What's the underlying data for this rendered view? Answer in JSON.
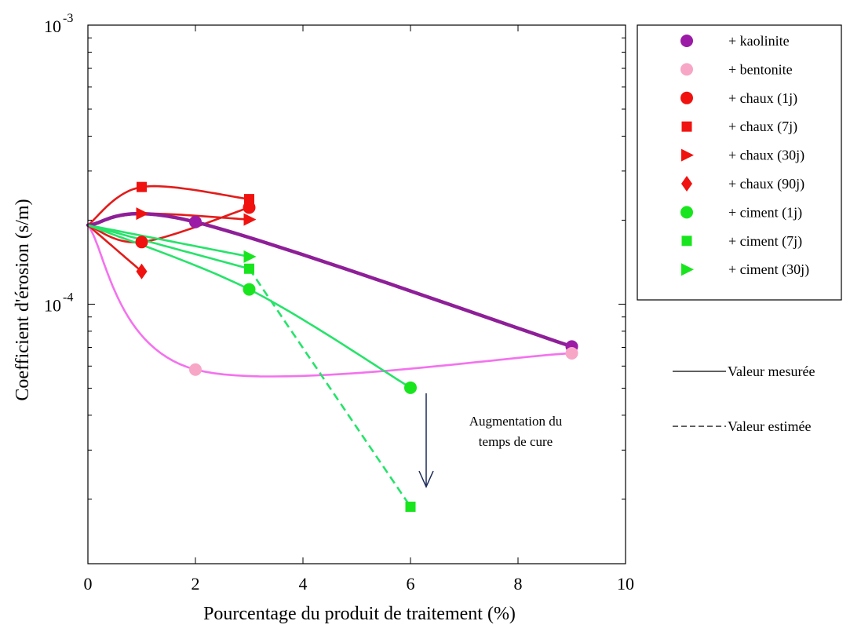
{
  "chart_data": {
    "type": "scatter",
    "xlabel": "Pourcentage du produit de traitement (%)",
    "ylabel": "Coefficient d'érosion (s/m)",
    "xlim": [
      0,
      10
    ],
    "ylim": [
      1.175e-05,
      0.001
    ],
    "y_scale": "log",
    "grid": false,
    "legend_position": "outside-right",
    "x_ticks": [
      0,
      2,
      4,
      6,
      8,
      10
    ],
    "x_tick_labels": [
      "0",
      "2",
      "4",
      "6",
      "8",
      "10"
    ],
    "y_ticks": [
      0.0001,
      0.001
    ],
    "y_tick_labels": [
      {
        "base": "10",
        "exp": "-4"
      },
      {
        "base": "10",
        "exp": "-3"
      }
    ],
    "series": [
      {
        "name": "+ kaolinite",
        "color": "#9b1ba7",
        "marker": "circle",
        "x": [
          0,
          2,
          9
        ],
        "y": [
          0.000192,
          0.000197,
          7.05e-05
        ]
      },
      {
        "name": "+ bentonite",
        "color": "#f7a6c6",
        "marker": "circle",
        "x": [
          0,
          2,
          9
        ],
        "y": [
          0.000192,
          5.83e-05,
          6.67e-05
        ]
      },
      {
        "name": "+ chaux (1j)",
        "color": "#f0120f",
        "marker": "circle",
        "x": [
          0,
          1,
          3
        ],
        "y": [
          0.000192,
          0.000167,
          0.000222
        ]
      },
      {
        "name": "+ chaux (7j)",
        "color": "#f0120f",
        "marker": "square",
        "x": [
          0,
          1,
          3
        ],
        "y": [
          0.000192,
          0.000263,
          0.000238
        ]
      },
      {
        "name": "+ chaux (30j)",
        "color": "#f0120f",
        "marker": "triangle-right",
        "x": [
          0,
          1,
          3
        ],
        "y": [
          0.000192,
          0.000211,
          0.000201
        ]
      },
      {
        "name": "+ chaux (90j)",
        "color": "#f0120f",
        "marker": "diamond",
        "x": [
          0,
          1
        ],
        "y": [
          0.000192,
          0.000131
        ]
      },
      {
        "name": "+ ciment (1j)",
        "color": "#19e51e",
        "marker": "circle",
        "x": [
          0,
          3,
          6
        ],
        "y": [
          0.000192,
          0.000113,
          5.02e-05
        ]
      },
      {
        "name": "+ ciment (7j)",
        "color": "#19e51e",
        "marker": "square",
        "x": [
          0,
          3,
          6
        ],
        "y": [
          0.000192,
          0.000134,
          1.88e-05
        ]
      },
      {
        "name": "+ ciment (30j)",
        "color": "#19e51e",
        "marker": "triangle-right",
        "x": [
          0,
          3
        ],
        "y": [
          0.000192,
          0.000148
        ]
      }
    ],
    "line_legend": [
      {
        "label": "Valeur mesurée",
        "style": "solid"
      },
      {
        "label": "Valeur estimée",
        "style": "dashed"
      }
    ],
    "annotation": {
      "lines": [
        "Augmentation du",
        "temps de cure"
      ],
      "arrow": "down",
      "arrow_color": "#1a2a5a"
    }
  }
}
